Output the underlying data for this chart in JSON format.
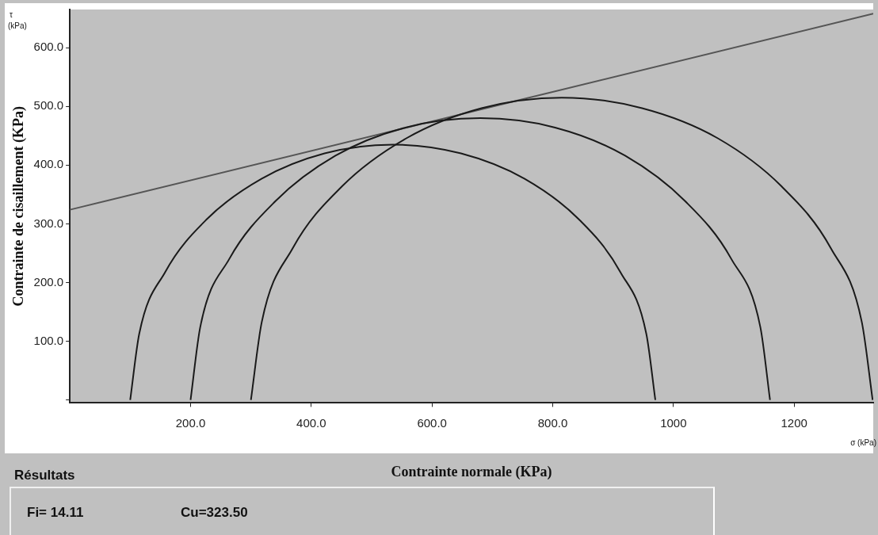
{
  "chart_data": {
    "type": "line",
    "xlabel": "Contrainte normale (KPa)",
    "ylabel": "Contrainte de cisaillement (KPa)",
    "xlim": [
      0,
      1331
    ],
    "ylim": [
      -5,
      665
    ],
    "xticks": [
      {
        "value": 200,
        "label": "200.0"
      },
      {
        "value": 400,
        "label": "400.0"
      },
      {
        "value": 600,
        "label": "600.0"
      },
      {
        "value": 800,
        "label": "800.0"
      },
      {
        "value": 1000,
        "label": "1000"
      },
      {
        "value": 1200,
        "label": "1200"
      }
    ],
    "yticks": [
      {
        "value": 0,
        "label": null
      },
      {
        "value": 100,
        "label": "100.0"
      },
      {
        "value": 200,
        "label": "200.0"
      },
      {
        "value": 300,
        "label": "300.0"
      },
      {
        "value": 400,
        "label": "400.0"
      },
      {
        "value": 500,
        "label": "500.0"
      },
      {
        "value": 600,
        "label": "600.0"
      }
    ],
    "grid": false,
    "marker": "none",
    "line_style": "solid",
    "series": [
      {
        "color": "#1a1a1a",
        "x": [
          100,
          115,
          158,
          227,
          318,
          422,
          535,
          648,
          753,
          843,
          912,
          955,
          970
        ],
        "values": [
          0,
          113,
          218,
          308,
          377,
          420,
          435,
          420,
          377,
          308,
          218,
          113,
          0
        ]
      },
      {
        "color": "#1a1a1a",
        "x": [
          200,
          216,
          264,
          341,
          440,
          556,
          680,
          804,
          920,
          1019,
          1096,
          1144,
          1160
        ],
        "values": [
          0,
          124,
          240,
          339,
          416,
          464,
          480,
          464,
          416,
          339,
          240,
          124,
          0
        ]
      },
      {
        "color": "#1a1a1a",
        "x": [
          300,
          318,
          369,
          451,
          558,
          682,
          815,
          948,
          1073,
          1179,
          1261,
          1312,
          1330
        ],
        "values": [
          0,
          133,
          258,
          364,
          446,
          497,
          515,
          497,
          446,
          364,
          258,
          133,
          0
        ]
      },
      {
        "color": "#555555",
        "x": [
          0,
          1331
        ],
        "values": [
          324,
          658
        ]
      }
    ],
    "annotations": [
      "τ",
      "(kPa)",
      "σ (kPa)",
      "Résultats",
      "Fi= 14.11",
      "Cu=323.50"
    ]
  }
}
